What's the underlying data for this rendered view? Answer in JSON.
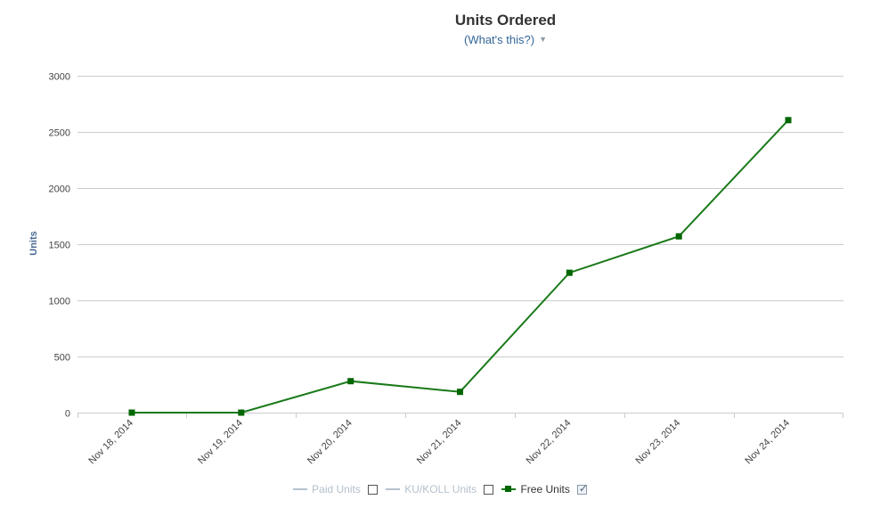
{
  "chart_data": {
    "type": "line",
    "title": "Units Ordered",
    "subtitle_link": "(What's this?)",
    "ylabel": "Units",
    "xlabel": "",
    "ylim": [
      0,
      3000
    ],
    "yticks": [
      0,
      500,
      1000,
      1500,
      2000,
      2500,
      3000
    ],
    "categories": [
      "Nov 18, 2014",
      "Nov 19, 2014",
      "Nov 20, 2014",
      "Nov 21, 2014",
      "Nov 22, 2014",
      "Nov 23, 2014",
      "Nov 24, 2014"
    ],
    "series": [
      {
        "name": "Free Units",
        "values": [
          0,
          0,
          280,
          185,
          1245,
          1570,
          2605
        ],
        "color": "#1a7a1a",
        "marker_color": "#006600"
      }
    ],
    "grid": true,
    "legend_placement": "bottom",
    "legend": [
      {
        "label": "Paid Units",
        "checked": false
      },
      {
        "label": "KU/KOLL Units",
        "checked": false
      },
      {
        "label": "Free Units",
        "checked": true
      }
    ]
  },
  "colors": {
    "gridline": "#cccccc",
    "axis_text": "#444444",
    "ylabel": "#4a6a96",
    "link": "#336699",
    "legend_disabled": "#b5c0cc"
  }
}
